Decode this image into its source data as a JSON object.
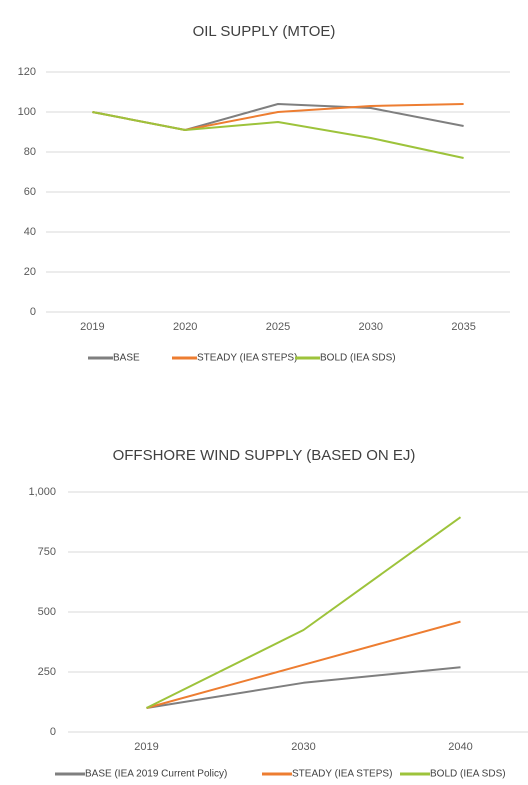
{
  "chart_data": [
    {
      "type": "line",
      "title": "OIL SUPPLY (MTOE)",
      "categories": [
        "2019",
        "2020",
        "2025",
        "2030",
        "2035"
      ],
      "ylim": [
        0,
        120
      ],
      "yticks": [
        0,
        20,
        40,
        60,
        80,
        100,
        120
      ],
      "grid": true,
      "series": [
        {
          "name": "BASE",
          "color": "#7f7f7f",
          "values": [
            100,
            91,
            104,
            102,
            93
          ]
        },
        {
          "name": "STEADY (IEA STEPS)",
          "color": "#ed7d31",
          "values": [
            100,
            91,
            100,
            103,
            104
          ]
        },
        {
          "name": "BOLD (IEA SDS)",
          "color": "#9dc33b",
          "values": [
            100,
            91,
            95,
            87,
            77
          ]
        }
      ]
    },
    {
      "type": "line",
      "title": "OFFSHORE WIND SUPPLY (BASED ON EJ)",
      "categories": [
        "2019",
        "2030",
        "2040"
      ],
      "ylim": [
        0,
        1000
      ],
      "yticks": [
        0,
        250,
        500,
        750,
        {
          "value": 1000,
          "label": "1,000"
        }
      ],
      "grid": true,
      "series": [
        {
          "name": "BASE (IEA 2019 Current Policy)",
          "color": "#7f7f7f",
          "values": [
            100,
            205,
            270
          ]
        },
        {
          "name": "STEADY (IEA STEPS)",
          "color": "#ed7d31",
          "values": [
            100,
            280,
            460
          ]
        },
        {
          "name": "BOLD (IEA SDS)",
          "color": "#9dc33b",
          "values": [
            100,
            425,
            895
          ]
        }
      ]
    }
  ]
}
